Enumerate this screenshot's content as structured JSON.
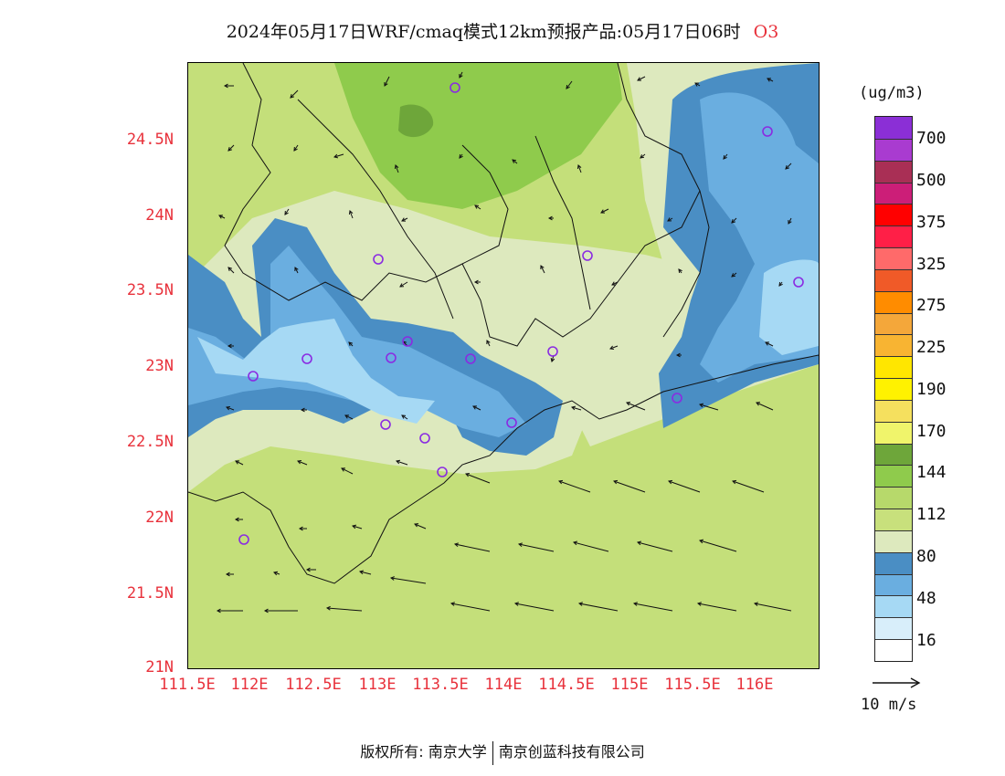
{
  "title": {
    "text": "2024年05月17日WRF/cmaq模式12km预报产品:05月17日06时",
    "species": "O3"
  },
  "map": {
    "lat_ticks": [
      "24.5N",
      "24N",
      "23.5N",
      "23N",
      "22.5N",
      "22N",
      "21.5N",
      "21N"
    ],
    "lon_ticks": [
      "111.5E",
      "112E",
      "112.5E",
      "113E",
      "113.5E",
      "114E",
      "114.5E",
      "115E",
      "115.5E",
      "116E"
    ],
    "background_color": "#c4df7a"
  },
  "colorbar": {
    "unit": "(ug/m3)",
    "labels": [
      "700",
      "500",
      "375",
      "325",
      "275",
      "225",
      "190",
      "170",
      "144",
      "112",
      "80",
      "48",
      "16"
    ],
    "colors": [
      "#8b2fd6",
      "#a93bd0",
      "#a92f55",
      "#cc1e78",
      "#ff0000",
      "#ff1f47",
      "#ff6a6a",
      "#f05a28",
      "#ff8c00",
      "#f4a73a",
      "#f8b432",
      "#ffe600",
      "#fff200",
      "#f5e05e",
      "#f0f46b",
      "#6ea63a",
      "#8fcb4c",
      "#b7d96b",
      "#c8e07c",
      "#dde9be",
      "#4a8ec4",
      "#6aaee0",
      "#a6d9f4",
      "#d8eefa",
      "#ffffff"
    ]
  },
  "wind_reference": {
    "label": "10 m/s"
  },
  "footer": {
    "copyright_label": "版权所有:",
    "org1": "南京大学",
    "org2": "南京创蓝科技有限公司"
  }
}
